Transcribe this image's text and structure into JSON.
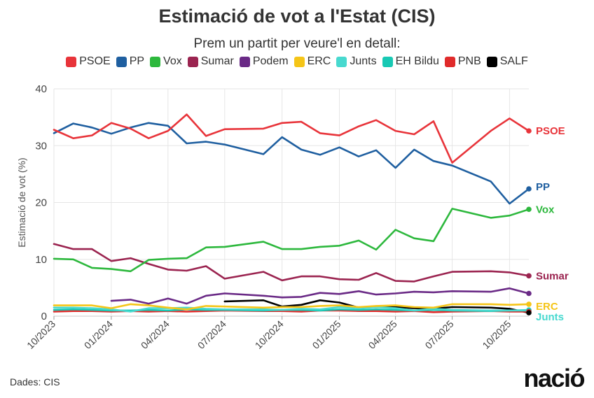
{
  "header": {
    "title": "Estimació de vot a l'Estat (CIS)",
    "subtitle": "Prem un partit per veure'l en detall:"
  },
  "footer": {
    "source": "Dades: CIS",
    "logo": "nació"
  },
  "chart_data": {
    "type": "line",
    "ylabel": "Estimació de vot (%)",
    "xlabel": "",
    "ylim": [
      0,
      40
    ],
    "yticks": [
      0,
      10,
      20,
      30,
      40
    ],
    "xlim": [
      "2023-10-01",
      "2025-11-01"
    ],
    "xticks": [
      {
        "date": "2023-10-01",
        "label": "10/2023"
      },
      {
        "date": "2024-01-01",
        "label": "01/2024"
      },
      {
        "date": "2024-04-01",
        "label": "04/2024"
      },
      {
        "date": "2024-07-01",
        "label": "07/2024"
      },
      {
        "date": "2024-10-01",
        "label": "10/2024"
      },
      {
        "date": "2025-01-01",
        "label": "01/2025"
      },
      {
        "date": "2025-04-01",
        "label": "04/2025"
      },
      {
        "date": "2025-07-01",
        "label": "07/2025"
      },
      {
        "date": "2025-10-01",
        "label": "10/2025"
      }
    ],
    "grid": true,
    "legend_position": "top",
    "series": [
      {
        "name": "PSOE",
        "color": "#e8343a",
        "end_label": "PSOE",
        "points": [
          [
            "2023-10-01",
            32.8
          ],
          [
            "2023-11-01",
            31.3
          ],
          [
            "2023-12-01",
            31.8
          ],
          [
            "2024-01-01",
            34.0
          ],
          [
            "2024-02-01",
            33.0
          ],
          [
            "2024-03-01",
            31.3
          ],
          [
            "2024-04-01",
            32.6
          ],
          [
            "2024-05-01",
            35.5
          ],
          [
            "2024-06-01",
            31.7
          ],
          [
            "2024-07-01",
            32.9
          ],
          [
            "2024-09-01",
            33.0
          ],
          [
            "2024-10-01",
            34.0
          ],
          [
            "2024-11-01",
            34.2
          ],
          [
            "2024-12-01",
            32.2
          ],
          [
            "2025-01-01",
            31.8
          ],
          [
            "2025-02-01",
            33.4
          ],
          [
            "2025-03-01",
            34.5
          ],
          [
            "2025-04-01",
            32.6
          ],
          [
            "2025-05-01",
            32.0
          ],
          [
            "2025-06-01",
            34.3
          ],
          [
            "2025-07-01",
            27.0
          ],
          [
            "2025-09-01",
            32.6
          ],
          [
            "2025-10-01",
            34.8
          ],
          [
            "2025-11-01",
            32.6
          ]
        ]
      },
      {
        "name": "PP",
        "color": "#1f5fa0",
        "end_label": "PP",
        "points": [
          [
            "2023-10-01",
            32.2
          ],
          [
            "2023-11-01",
            33.9
          ],
          [
            "2023-12-01",
            33.2
          ],
          [
            "2024-01-01",
            32.1
          ],
          [
            "2024-02-01",
            33.2
          ],
          [
            "2024-03-01",
            34.0
          ],
          [
            "2024-04-01",
            33.5
          ],
          [
            "2024-05-01",
            30.4
          ],
          [
            "2024-06-01",
            30.7
          ],
          [
            "2024-07-01",
            30.2
          ],
          [
            "2024-09-01",
            28.5
          ],
          [
            "2024-10-01",
            31.5
          ],
          [
            "2024-11-01",
            29.3
          ],
          [
            "2024-12-01",
            28.4
          ],
          [
            "2025-01-01",
            29.7
          ],
          [
            "2025-02-01",
            28.1
          ],
          [
            "2025-03-01",
            29.2
          ],
          [
            "2025-04-01",
            26.1
          ],
          [
            "2025-05-01",
            29.3
          ],
          [
            "2025-06-01",
            27.3
          ],
          [
            "2025-07-01",
            26.5
          ],
          [
            "2025-09-01",
            23.7
          ],
          [
            "2025-10-01",
            19.8
          ],
          [
            "2025-11-01",
            22.4
          ]
        ]
      },
      {
        "name": "Vox",
        "color": "#2db83d",
        "end_label": "Vox",
        "points": [
          [
            "2023-10-01",
            10.1
          ],
          [
            "2023-11-01",
            10.0
          ],
          [
            "2023-12-01",
            8.5
          ],
          [
            "2024-01-01",
            8.3
          ],
          [
            "2024-02-01",
            7.9
          ],
          [
            "2024-03-01",
            9.9
          ],
          [
            "2024-04-01",
            10.1
          ],
          [
            "2024-05-01",
            10.2
          ],
          [
            "2024-06-01",
            12.1
          ],
          [
            "2024-07-01",
            12.2
          ],
          [
            "2024-09-01",
            13.1
          ],
          [
            "2024-10-01",
            11.8
          ],
          [
            "2024-11-01",
            11.8
          ],
          [
            "2024-12-01",
            12.2
          ],
          [
            "2025-01-01",
            12.4
          ],
          [
            "2025-02-01",
            13.3
          ],
          [
            "2025-03-01",
            11.7
          ],
          [
            "2025-04-01",
            15.2
          ],
          [
            "2025-05-01",
            13.7
          ],
          [
            "2025-06-01",
            13.2
          ],
          [
            "2025-07-01",
            18.9
          ],
          [
            "2025-09-01",
            17.3
          ],
          [
            "2025-10-01",
            17.7
          ],
          [
            "2025-11-01",
            18.8
          ]
        ]
      },
      {
        "name": "Sumar",
        "color": "#9b2450",
        "end_label": "Sumar",
        "points": [
          [
            "2023-10-01",
            12.7
          ],
          [
            "2023-11-01",
            11.8
          ],
          [
            "2023-12-01",
            11.8
          ],
          [
            "2024-01-01",
            9.7
          ],
          [
            "2024-02-01",
            10.2
          ],
          [
            "2024-03-01",
            9.2
          ],
          [
            "2024-04-01",
            8.2
          ],
          [
            "2024-05-01",
            8.0
          ],
          [
            "2024-06-01",
            8.8
          ],
          [
            "2024-07-01",
            6.6
          ],
          [
            "2024-09-01",
            7.8
          ],
          [
            "2024-10-01",
            6.3
          ],
          [
            "2024-11-01",
            7.0
          ],
          [
            "2024-12-01",
            7.0
          ],
          [
            "2025-01-01",
            6.5
          ],
          [
            "2025-02-01",
            6.4
          ],
          [
            "2025-03-01",
            7.6
          ],
          [
            "2025-04-01",
            6.2
          ],
          [
            "2025-05-01",
            6.1
          ],
          [
            "2025-06-01",
            7.0
          ],
          [
            "2025-07-01",
            7.8
          ],
          [
            "2025-09-01",
            7.9
          ],
          [
            "2025-10-01",
            7.7
          ],
          [
            "2025-11-01",
            7.1
          ]
        ]
      },
      {
        "name": "Podem",
        "color": "#6a2a86",
        "end_label": "",
        "points": [
          [
            "2024-01-01",
            2.7
          ],
          [
            "2024-02-01",
            2.9
          ],
          [
            "2024-03-01",
            2.2
          ],
          [
            "2024-04-01",
            3.1
          ],
          [
            "2024-05-01",
            2.2
          ],
          [
            "2024-06-01",
            3.6
          ],
          [
            "2024-07-01",
            4.0
          ],
          [
            "2024-09-01",
            3.6
          ],
          [
            "2024-10-01",
            3.3
          ],
          [
            "2024-11-01",
            3.4
          ],
          [
            "2024-12-01",
            4.1
          ],
          [
            "2025-01-01",
            3.9
          ],
          [
            "2025-02-01",
            4.4
          ],
          [
            "2025-03-01",
            3.8
          ],
          [
            "2025-04-01",
            4.0
          ],
          [
            "2025-05-01",
            4.3
          ],
          [
            "2025-06-01",
            4.2
          ],
          [
            "2025-07-01",
            4.4
          ],
          [
            "2025-09-01",
            4.3
          ],
          [
            "2025-10-01",
            4.9
          ],
          [
            "2025-11-01",
            4.0
          ]
        ]
      },
      {
        "name": "ERC",
        "color": "#f5c518",
        "end_label": "ERC",
        "points": [
          [
            "2023-10-01",
            1.9
          ],
          [
            "2023-11-01",
            1.9
          ],
          [
            "2023-12-01",
            1.9
          ],
          [
            "2024-01-01",
            1.4
          ],
          [
            "2024-02-01",
            2.1
          ],
          [
            "2024-03-01",
            1.9
          ],
          [
            "2024-04-01",
            1.5
          ],
          [
            "2024-05-01",
            1.2
          ],
          [
            "2024-06-01",
            1.8
          ],
          [
            "2024-07-01",
            1.7
          ],
          [
            "2024-09-01",
            1.5
          ],
          [
            "2024-10-01",
            1.6
          ],
          [
            "2024-11-01",
            1.6
          ],
          [
            "2024-12-01",
            1.8
          ],
          [
            "2025-01-01",
            1.9
          ],
          [
            "2025-02-01",
            1.6
          ],
          [
            "2025-03-01",
            1.8
          ],
          [
            "2025-04-01",
            1.9
          ],
          [
            "2025-05-01",
            1.6
          ],
          [
            "2025-06-01",
            1.5
          ],
          [
            "2025-07-01",
            2.1
          ],
          [
            "2025-09-01",
            2.1
          ],
          [
            "2025-10-01",
            2.0
          ],
          [
            "2025-11-01",
            2.1
          ]
        ]
      },
      {
        "name": "Junts",
        "color": "#48d9cf",
        "end_label": "Junts",
        "points": [
          [
            "2023-10-01",
            1.5
          ],
          [
            "2023-11-01",
            1.5
          ],
          [
            "2023-12-01",
            1.4
          ],
          [
            "2024-01-01",
            1.2
          ],
          [
            "2024-02-01",
            0.8
          ],
          [
            "2024-03-01",
            1.4
          ],
          [
            "2024-04-01",
            1.4
          ],
          [
            "2024-05-01",
            1.5
          ],
          [
            "2024-06-01",
            1.3
          ],
          [
            "2024-07-01",
            1.2
          ],
          [
            "2024-09-01",
            1.2
          ],
          [
            "2024-10-01",
            1.1
          ],
          [
            "2024-11-01",
            1.3
          ],
          [
            "2024-12-01",
            1.2
          ],
          [
            "2025-01-01",
            1.6
          ],
          [
            "2025-02-01",
            1.4
          ],
          [
            "2025-03-01",
            1.6
          ],
          [
            "2025-04-01",
            1.4
          ],
          [
            "2025-05-01",
            1.0
          ],
          [
            "2025-06-01",
            1.3
          ],
          [
            "2025-07-01",
            1.1
          ],
          [
            "2025-09-01",
            1.0
          ],
          [
            "2025-10-01",
            1.0
          ],
          [
            "2025-11-01",
            1.1
          ]
        ]
      },
      {
        "name": "EH Bildu",
        "color": "#18c9b4",
        "end_label": "",
        "points": [
          [
            "2023-10-01",
            1.1
          ],
          [
            "2023-11-01",
            1.2
          ],
          [
            "2023-12-01",
            1.1
          ],
          [
            "2024-01-01",
            1.0
          ],
          [
            "2024-02-01",
            1.0
          ],
          [
            "2024-03-01",
            1.1
          ],
          [
            "2024-04-01",
            1.0
          ],
          [
            "2024-05-01",
            1.2
          ],
          [
            "2024-06-01",
            1.1
          ],
          [
            "2024-07-01",
            1.1
          ],
          [
            "2024-09-01",
            1.0
          ],
          [
            "2024-10-01",
            1.1
          ],
          [
            "2024-11-01",
            1.1
          ],
          [
            "2024-12-01",
            1.0
          ],
          [
            "2025-01-01",
            1.2
          ],
          [
            "2025-02-01",
            1.1
          ],
          [
            "2025-03-01",
            1.2
          ],
          [
            "2025-04-01",
            1.1
          ],
          [
            "2025-05-01",
            1.0
          ],
          [
            "2025-06-01",
            1.1
          ],
          [
            "2025-07-01",
            1.0
          ],
          [
            "2025-09-01",
            0.9
          ],
          [
            "2025-10-01",
            1.0
          ],
          [
            "2025-11-01",
            1.0
          ]
        ]
      },
      {
        "name": "PNB",
        "color": "#e02b2b",
        "end_label": "",
        "points": [
          [
            "2023-10-01",
            0.8
          ],
          [
            "2023-11-01",
            0.9
          ],
          [
            "2023-12-01",
            0.9
          ],
          [
            "2024-01-01",
            0.8
          ],
          [
            "2024-02-01",
            0.9
          ],
          [
            "2024-03-01",
            0.8
          ],
          [
            "2024-04-01",
            0.9
          ],
          [
            "2024-05-01",
            0.8
          ],
          [
            "2024-06-01",
            0.9
          ],
          [
            "2024-07-01",
            1.0
          ],
          [
            "2024-09-01",
            0.9
          ],
          [
            "2024-10-01",
            0.9
          ],
          [
            "2024-11-01",
            0.8
          ],
          [
            "2024-12-01",
            1.0
          ],
          [
            "2025-01-01",
            1.0
          ],
          [
            "2025-02-01",
            0.9
          ],
          [
            "2025-03-01",
            0.9
          ],
          [
            "2025-04-01",
            0.8
          ],
          [
            "2025-05-01",
            0.9
          ],
          [
            "2025-06-01",
            0.7
          ],
          [
            "2025-07-01",
            0.8
          ],
          [
            "2025-09-01",
            0.9
          ],
          [
            "2025-10-01",
            0.8
          ],
          [
            "2025-11-01",
            0.8
          ]
        ]
      },
      {
        "name": "SALF",
        "color": "#000000",
        "end_label": "",
        "points": [
          [
            "2024-07-01",
            2.6
          ],
          [
            "2024-09-01",
            2.8
          ],
          [
            "2024-10-01",
            1.7
          ],
          [
            "2024-11-01",
            2.0
          ],
          [
            "2024-12-01",
            2.8
          ],
          [
            "2025-01-01",
            2.4
          ],
          [
            "2025-02-01",
            1.5
          ],
          [
            "2025-03-01",
            1.6
          ],
          [
            "2025-04-01",
            1.6
          ],
          [
            "2025-05-01",
            1.4
          ],
          [
            "2025-06-01",
            1.3
          ],
          [
            "2025-07-01",
            1.6
          ],
          [
            "2025-09-01",
            1.5
          ],
          [
            "2025-10-01",
            1.3
          ],
          [
            "2025-11-01",
            0.6
          ]
        ]
      }
    ]
  }
}
